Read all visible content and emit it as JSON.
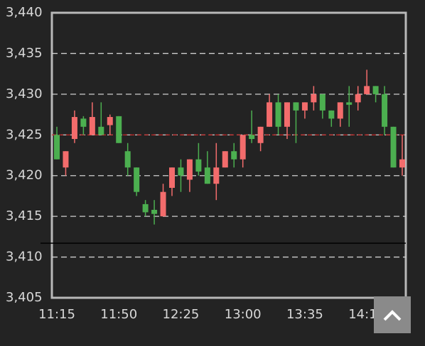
{
  "chart_data": {
    "type": "candlestick",
    "categories": [
      "11:15",
      null,
      null,
      null,
      null,
      null,
      null,
      "11:50",
      null,
      null,
      null,
      null,
      null,
      null,
      "12:25",
      null,
      null,
      null,
      null,
      null,
      null,
      "13:00",
      null,
      null,
      null,
      null,
      null,
      null,
      "13:35",
      null,
      null,
      null,
      null,
      null,
      null,
      "14:10",
      null,
      null,
      null,
      null
    ],
    "open": [
      3425,
      3421,
      3424.5,
      3427,
      3425,
      3426,
      3426.2,
      3427.3,
      3423,
      3421,
      3416.5,
      3415.8,
      3415,
      3418.5,
      3421,
      3419.5,
      3422,
      3421,
      3419,
      3421,
      3423,
      3422,
      3425,
      3424,
      3426,
      3429,
      3426,
      3429,
      3428,
      3429,
      3430,
      3428,
      3427,
      3429,
      3429,
      3430,
      3431,
      3430,
      3426,
      3421
    ],
    "close": [
      3422,
      3423,
      3427.2,
      3426,
      3427.2,
      3425,
      3427.2,
      3424,
      3421,
      3418,
      3415.5,
      3415.3,
      3418,
      3421,
      3420,
      3422,
      3420.5,
      3419,
      3421,
      3423,
      3422,
      3425,
      3424.5,
      3426,
      3429,
      3426,
      3429,
      3428,
      3429,
      3430,
      3428,
      3427,
      3429,
      3428.7,
      3430,
      3431,
      3430,
      3426,
      3421,
      3422
    ],
    "high": [
      3426,
      3423,
      3428,
      3427.3,
      3429,
      3429,
      3427.5,
      3427.3,
      3424,
      3421,
      3417,
      3417,
      3419,
      3421,
      3422,
      3422,
      3424,
      3423,
      3424,
      3423,
      3424,
      3425,
      3428,
      3426,
      3430,
      3430,
      3429,
      3429,
      3429,
      3431,
      3430,
      3428,
      3429,
      3431,
      3431,
      3433,
      3431,
      3431,
      3426,
      3425
    ],
    "low": [
      3422,
      3420,
      3424,
      3425,
      3425,
      3425,
      3425,
      3424,
      3420,
      3417.5,
      3415,
      3414,
      3415,
      3417.5,
      3418,
      3418,
      3420,
      3419,
      3417,
      3421,
      3421,
      3421,
      3424,
      3423,
      3426,
      3425,
      3424.5,
      3424,
      3427,
      3428,
      3427,
      3426,
      3426,
      3426,
      3428,
      3430,
      3429,
      3425,
      3421,
      3420
    ],
    "up_color": "#f36c6c",
    "down_color": "#4caf50",
    "reference_line": 3425,
    "reference_color": "#c62828",
    "ylim": [
      3405,
      3440
    ],
    "yticks": [
      {
        "value": 3405,
        "label": "3,405"
      },
      {
        "value": 3410,
        "label": "3,410"
      },
      {
        "value": 3415,
        "label": "3,415"
      },
      {
        "value": 3420,
        "label": "3,420"
      },
      {
        "value": 3425,
        "label": "3,425"
      },
      {
        "value": 3430,
        "label": "3,430"
      },
      {
        "value": 3435,
        "label": "3,435"
      },
      {
        "value": 3440,
        "label": "3,440"
      }
    ],
    "grid": true
  }
}
